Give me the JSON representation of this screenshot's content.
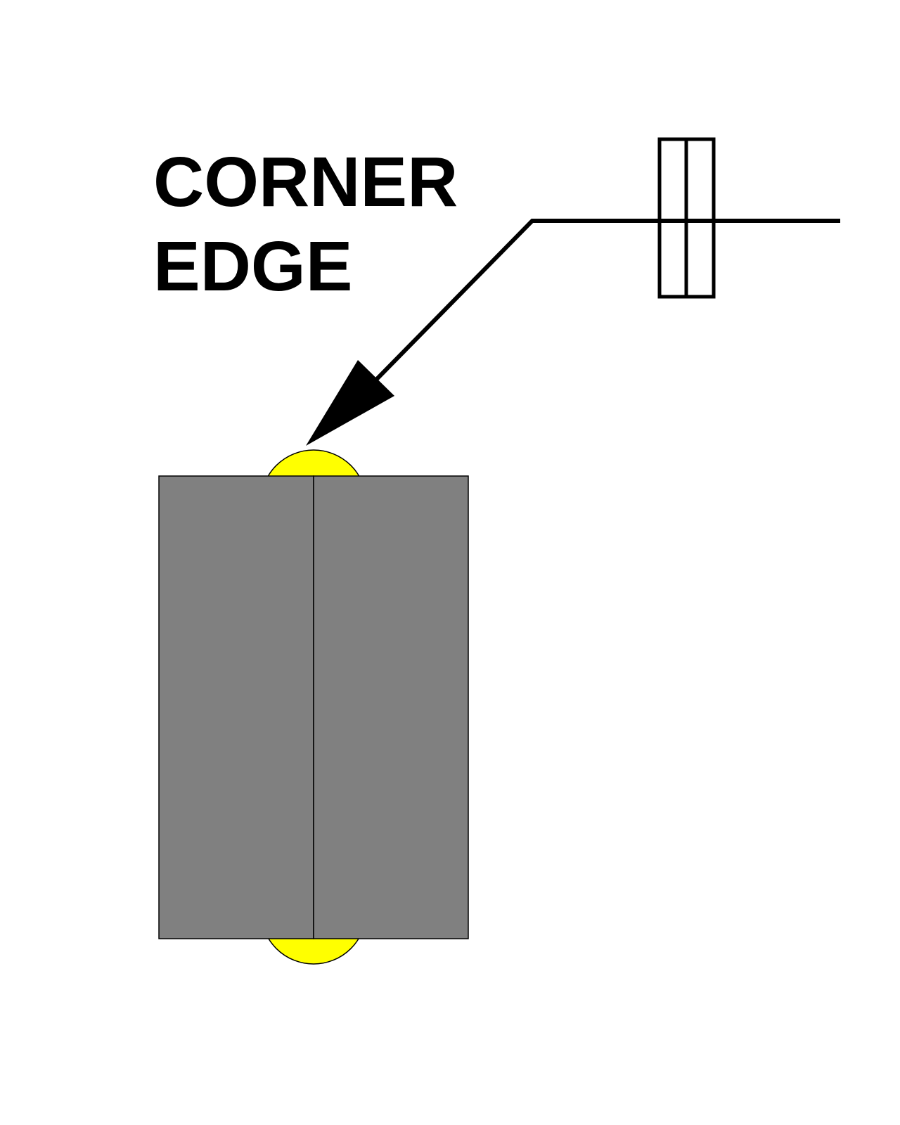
{
  "label": {
    "line1": "CORNER",
    "line2": "EDGE"
  },
  "colors": {
    "plate": "#808080",
    "weld": "#ffff00",
    "line": "#000000",
    "background": "#ffffff"
  },
  "symbols": {
    "weld_symbol": "seam-weld-symbol",
    "arrow": "leader-arrow"
  }
}
